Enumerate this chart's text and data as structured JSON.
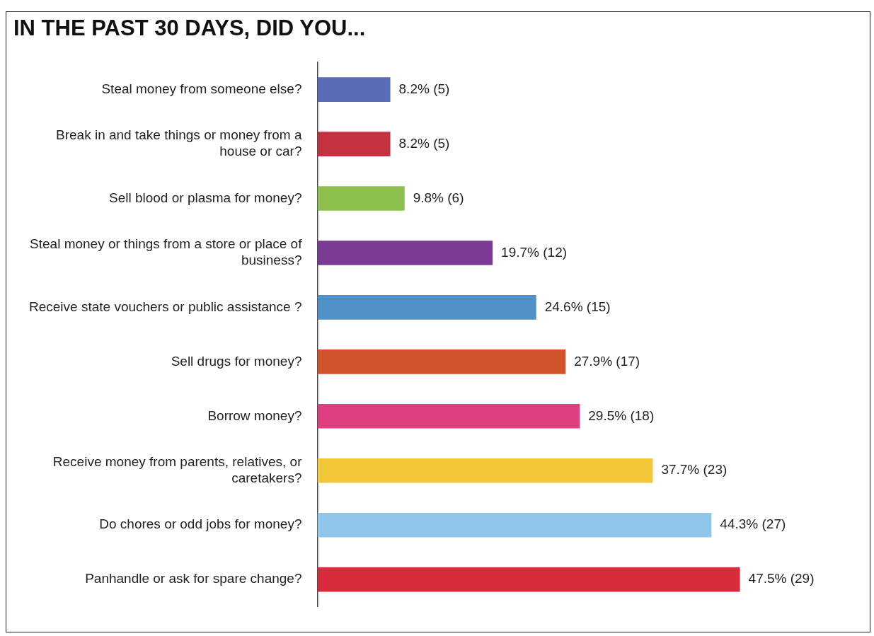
{
  "chart_data": {
    "type": "bar",
    "orientation": "horizontal",
    "title": "IN THE PAST 30 DAYS, DID YOU...",
    "categories": [
      "Steal money from someone else?",
      "Break in and take things or money from a house or car?",
      "Sell blood or plasma for money?",
      "Steal money or things from a store or place of business?",
      "Receive state vouchers or public assistance ?",
      "Sell drugs for money?",
      "Borrow money?",
      "Receive money from parents, relatives, or caretakers?",
      "Do chores or odd jobs for money?",
      "Panhandle or ask for spare change?"
    ],
    "values": [
      8.2,
      8.2,
      9.8,
      19.7,
      24.6,
      27.9,
      29.5,
      37.7,
      44.3,
      47.5
    ],
    "colors": [
      "#5a6cb8",
      "#c4323f",
      "#8dbf4c",
      "#7b3b94",
      "#4f90c6",
      "#d0532b",
      "#de3f80",
      "#efc737",
      "#90c6ea",
      "#d82b3b"
    ],
    "value_labels": [
      "8.2% (5)",
      "8.2% (5)",
      "9.8% (6)",
      "19.7% (12)",
      "24.6% (15)",
      "27.9% (17)",
      "29.5% (18)",
      "37.7% (23)",
      "44.3% (27)",
      "47.5% (29)"
    ],
    "tick_labels": "y",
    "grid": false,
    "legend": false
  }
}
